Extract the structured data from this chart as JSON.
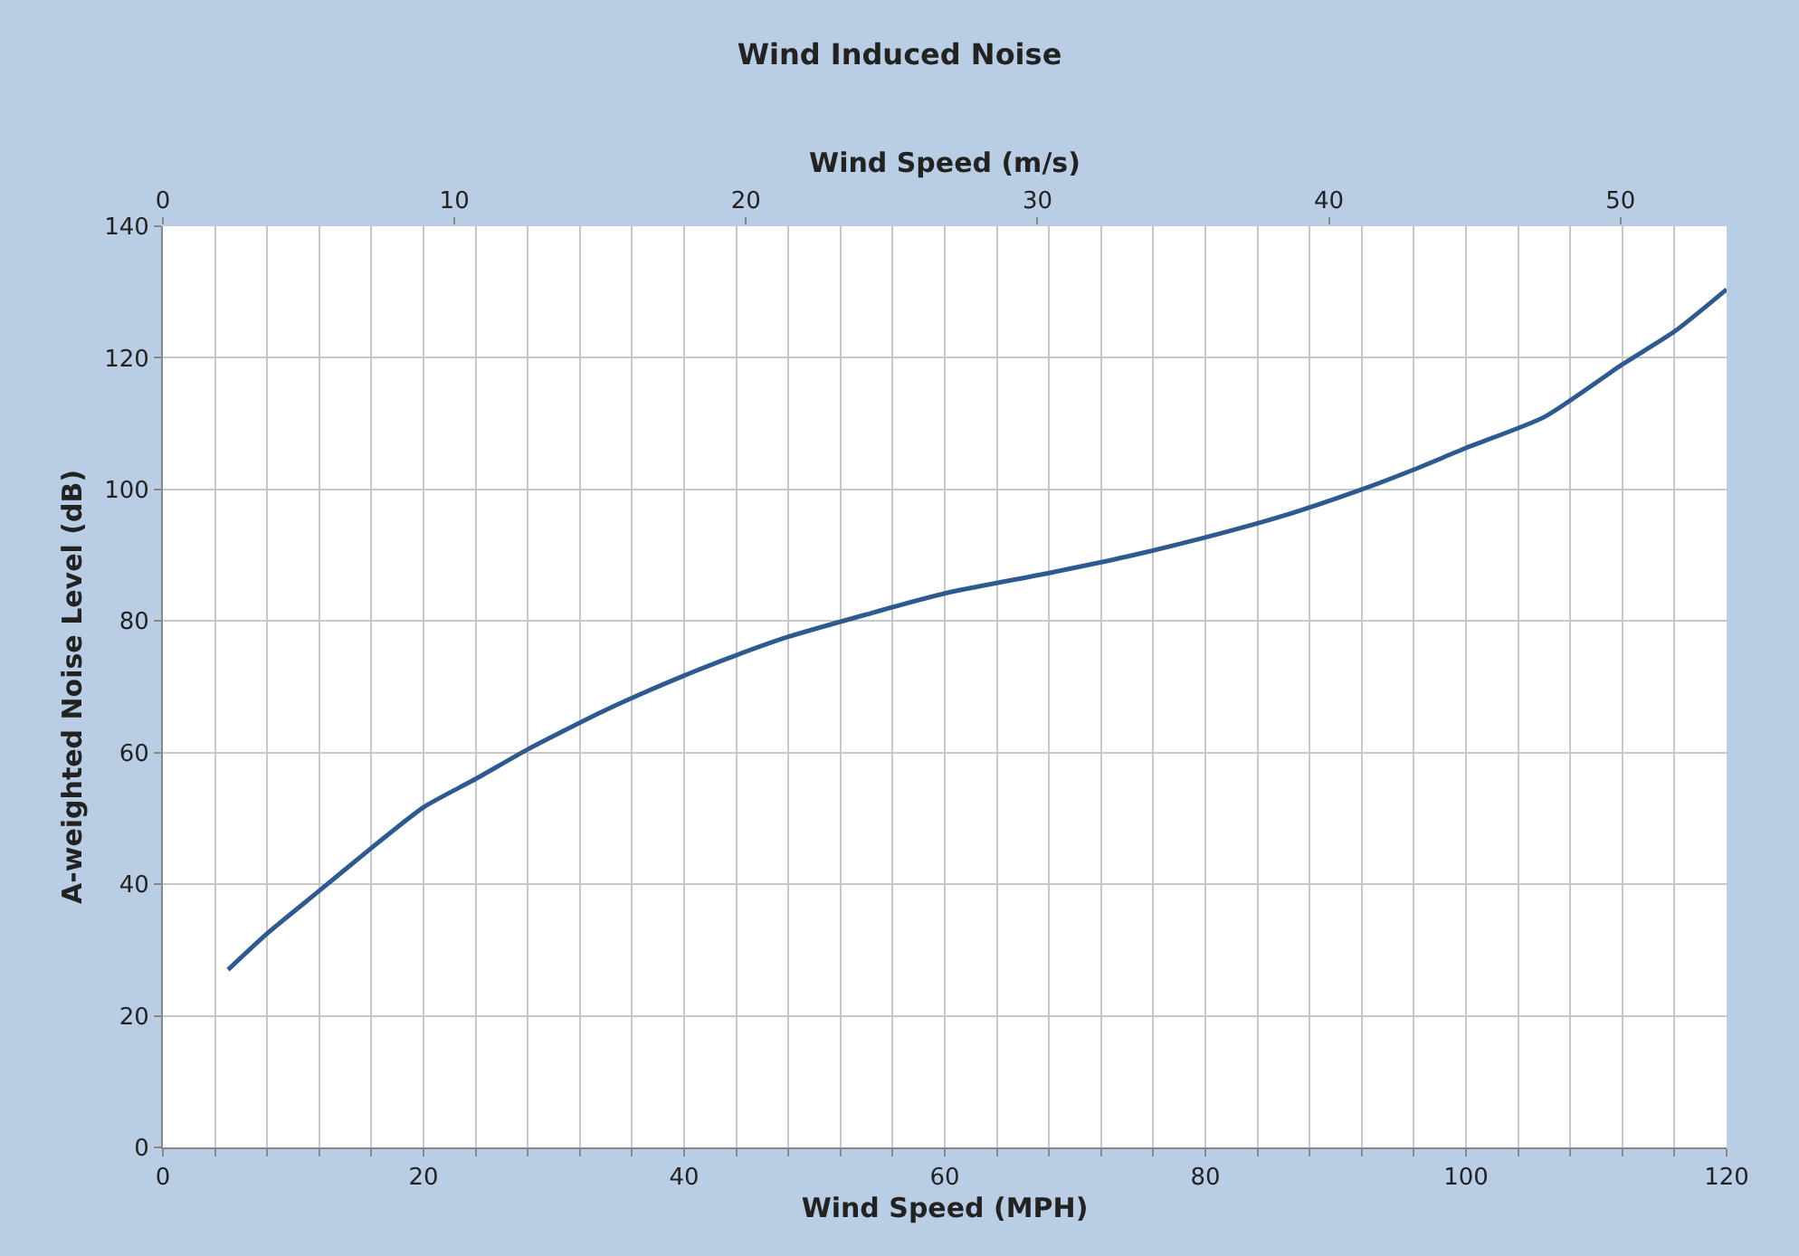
{
  "chart_data": {
    "type": "line",
    "title": "Wind Induced Noise",
    "xlabel": "Wind Speed (MPH)",
    "x2label": "Wind Speed (m/s)",
    "ylabel": "A-weighted Noise Level (dB)",
    "xlim": [
      0,
      120
    ],
    "ylim": [
      0,
      140
    ],
    "x2lim": [
      0,
      53.64
    ],
    "xticks": [
      0,
      {
        "value": 4,
        "label": null
      },
      {
        "value": 8,
        "label": null
      },
      {
        "value": 12,
        "label": null
      },
      {
        "value": 16,
        "label": null
      },
      20,
      {
        "value": 24,
        "label": null
      },
      {
        "value": 28,
        "label": null
      },
      {
        "value": 32,
        "label": null
      },
      {
        "value": 36,
        "label": null
      },
      40,
      {
        "value": 44,
        "label": null
      },
      {
        "value": 48,
        "label": null
      },
      {
        "value": 52,
        "label": null
      },
      {
        "value": 56,
        "label": null
      },
      60,
      {
        "value": 64,
        "label": null
      },
      {
        "value": 68,
        "label": null
      },
      {
        "value": 72,
        "label": null
      },
      {
        "value": 76,
        "label": null
      },
      80,
      {
        "value": 84,
        "label": null
      },
      {
        "value": 88,
        "label": null
      },
      {
        "value": 92,
        "label": null
      },
      {
        "value": 96,
        "label": null
      },
      100,
      {
        "value": 104,
        "label": null
      },
      {
        "value": 108,
        "label": null
      },
      {
        "value": 112,
        "label": null
      },
      {
        "value": 116,
        "label": null
      },
      120
    ],
    "x2ticks": [
      0,
      10,
      20,
      30,
      40,
      50
    ],
    "yticks": [
      0,
      20,
      40,
      60,
      80,
      100,
      120,
      140
    ],
    "grid": true,
    "marker": "none",
    "line_style": "solid",
    "x": [
      5,
      8,
      12,
      16,
      20,
      24,
      28,
      34,
      40,
      44,
      48,
      54,
      60,
      68,
      74,
      80,
      86,
      92,
      96,
      100,
      106,
      112,
      116,
      120
    ],
    "series": [
      {
        "color": "#2f5a8f",
        "values": [
          27,
          32.5,
          39,
          45.5,
          51.7,
          56,
          60.5,
          66.5,
          71.7,
          74.8,
          77.6,
          81,
          84.2,
          87.3,
          89.8,
          92.7,
          96,
          100,
          103,
          106.3,
          111,
          119,
          124,
          130.4
        ]
      }
    ]
  }
}
